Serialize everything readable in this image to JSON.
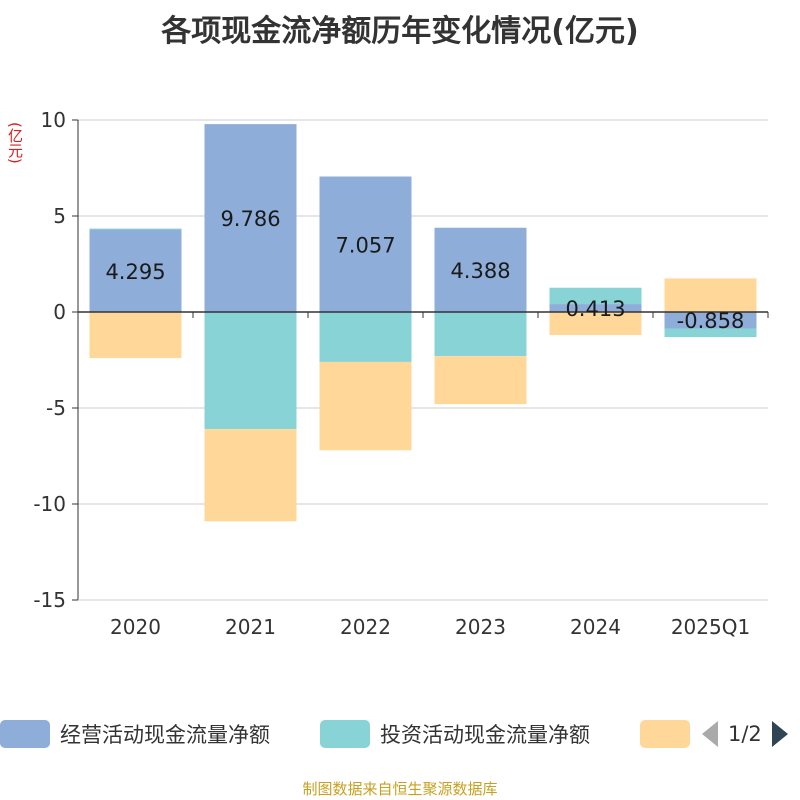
{
  "title": "各项现金流净额历年变化情况(亿元)",
  "y_unit": "(亿元)",
  "source": "制图数据来自恒生聚源数据库",
  "legend": {
    "items": [
      {
        "label": "经营活动现金流量净额",
        "color": "#8eadd9"
      },
      {
        "label": "投资活动现金流量净额",
        "color": "#87d3d6"
      },
      {
        "label": "",
        "color": "#ffd899"
      }
    ],
    "page": "1/2"
  },
  "chart_data": {
    "type": "bar",
    "stacked": true,
    "categories": [
      "2020",
      "2021",
      "2022",
      "2023",
      "2024",
      "2025Q1"
    ],
    "series": [
      {
        "name": "经营活动现金流量净额",
        "color": "#8eadd9",
        "values": [
          4.295,
          9.786,
          7.057,
          4.388,
          0.413,
          -0.858
        ],
        "labels": [
          "4.295",
          "9.786",
          "7.057",
          "4.388",
          "0.413",
          "-0.858"
        ]
      },
      {
        "name": "投资活动现金流量净额",
        "color": "#87d3d6",
        "values": [
          0.05,
          -6.1,
          -2.6,
          -2.3,
          0.85,
          -0.45
        ]
      },
      {
        "color": "#ffd899",
        "values": [
          -2.4,
          -4.8,
          -4.6,
          -2.5,
          -1.2,
          1.75
        ]
      }
    ],
    "ylim": [
      -15,
      10
    ],
    "yticks": [
      10,
      5,
      0,
      -5,
      -10,
      -15
    ],
    "grid": true
  }
}
